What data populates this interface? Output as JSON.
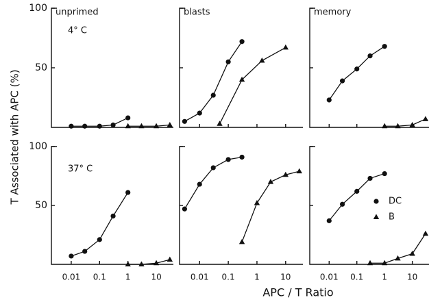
{
  "chart_data": {
    "type": "line",
    "ylabel": "T Associated with APC (%)",
    "xlabel": "APC / T Ratio",
    "panels": [
      {
        "type": "line",
        "title": "unprimed",
        "annotation": "4° C",
        "log_x": true,
        "xlim": [
          0.002,
          40
        ],
        "ylim": [
          0,
          100
        ],
        "yticks": [
          50,
          100
        ],
        "series": [
          {
            "name": "DC",
            "marker": "circle",
            "color": "#111",
            "x": [
              0.01,
              0.03,
              0.1,
              0.3,
              1
            ],
            "values": [
              1,
              1,
              1,
              2,
              8
            ]
          },
          {
            "name": "B",
            "marker": "triangle",
            "color": "#111",
            "x": [
              1,
              3,
              10,
              30
            ],
            "values": [
              1,
              1,
              1,
              2
            ]
          }
        ]
      },
      {
        "type": "line",
        "title": "blasts",
        "log_x": true,
        "xlim": [
          0.002,
          40
        ],
        "ylim": [
          0,
          100
        ],
        "series": [
          {
            "name": "DC",
            "marker": "circle",
            "color": "#111",
            "x": [
              0.003,
              0.01,
              0.03,
              0.1,
              0.3
            ],
            "values": [
              5,
              12,
              27,
              55,
              72
            ]
          },
          {
            "name": "B",
            "marker": "triangle",
            "color": "#111",
            "x": [
              0.05,
              0.3,
              1.5,
              10
            ],
            "values": [
              3,
              40,
              56,
              67
            ]
          }
        ]
      },
      {
        "type": "line",
        "title": "memory",
        "log_x": true,
        "xlim": [
          0.002,
          40
        ],
        "ylim": [
          0,
          100
        ],
        "series": [
          {
            "name": "DC",
            "marker": "circle",
            "color": "#111",
            "x": [
              0.01,
              0.03,
              0.1,
              0.3,
              1
            ],
            "values": [
              23,
              39,
              49,
              60,
              68
            ]
          },
          {
            "name": "B",
            "marker": "triangle",
            "color": "#111",
            "x": [
              1,
              3,
              10,
              30
            ],
            "values": [
              1,
              1,
              2,
              7
            ]
          }
        ]
      },
      {
        "type": "line",
        "annotation": "37° C",
        "log_x": true,
        "xlim": [
          0.002,
          40
        ],
        "ylim": [
          0,
          100
        ],
        "yticks": [
          50,
          100
        ],
        "xticks": [
          0.01,
          0.1,
          1,
          10
        ],
        "series": [
          {
            "name": "DC",
            "marker": "circle",
            "color": "#111",
            "x": [
              0.01,
              0.03,
              0.1,
              0.3,
              1
            ],
            "values": [
              7,
              11,
              21,
              41,
              61
            ]
          },
          {
            "name": "B",
            "marker": "triangle",
            "color": "#111",
            "x": [
              1,
              3,
              10,
              30
            ],
            "values": [
              0,
              0,
              1,
              4
            ]
          }
        ]
      },
      {
        "type": "line",
        "log_x": true,
        "xlim": [
          0.002,
          40
        ],
        "ylim": [
          0,
          100
        ],
        "xticks": [
          0.01,
          0.1,
          1,
          10
        ],
        "series": [
          {
            "name": "DC",
            "marker": "circle",
            "color": "#111",
            "x": [
              0.003,
              0.01,
              0.03,
              0.1,
              0.3
            ],
            "values": [
              47,
              68,
              82,
              89,
              91
            ]
          },
          {
            "name": "B",
            "marker": "triangle",
            "color": "#111",
            "x": [
              0.3,
              1,
              3,
              10,
              30
            ],
            "values": [
              19,
              52,
              70,
              76,
              79
            ]
          }
        ]
      },
      {
        "type": "line",
        "log_x": true,
        "xlim": [
          0.002,
          40
        ],
        "ylim": [
          0,
          100
        ],
        "xticks": [
          0.01,
          0.1,
          1,
          10
        ],
        "legend": "right",
        "series": [
          {
            "name": "DC",
            "marker": "circle",
            "color": "#111",
            "x": [
              0.01,
              0.03,
              0.1,
              0.3,
              1
            ],
            "values": [
              37,
              51,
              62,
              73,
              77
            ]
          },
          {
            "name": "B",
            "marker": "triangle",
            "color": "#111",
            "x": [
              0.3,
              1,
              3,
              10,
              30
            ],
            "values": [
              1,
              1,
              5,
              9,
              26
            ]
          }
        ]
      }
    ]
  }
}
